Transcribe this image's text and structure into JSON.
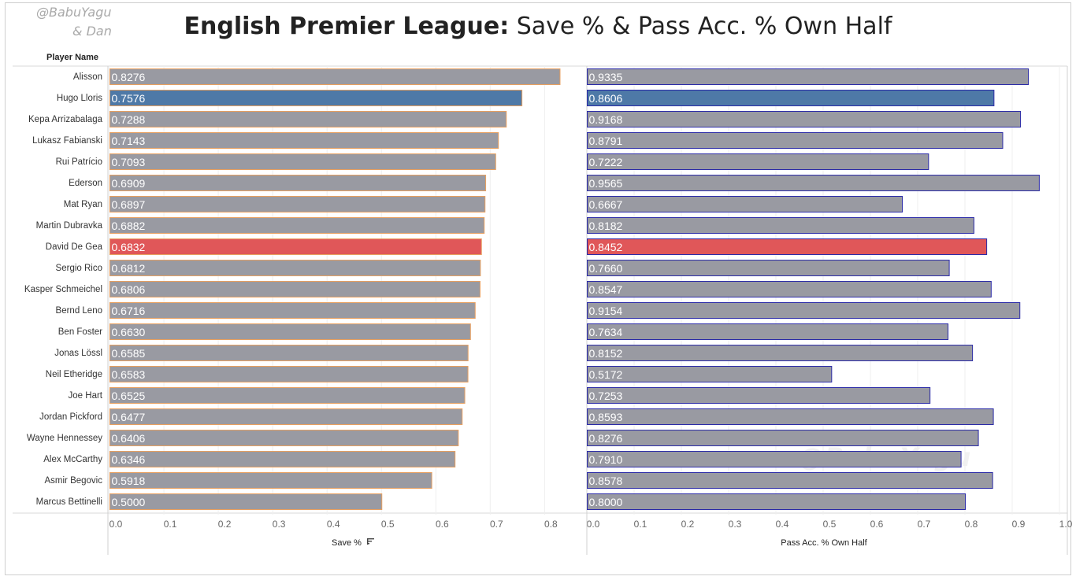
{
  "credit": {
    "line1": "@BabuYagu",
    "line2": "& Dan"
  },
  "title": {
    "bold": "English Premier League:",
    "rest": " Save % & Pass Acc. % Own Half"
  },
  "row_header": "Player Name",
  "watermark": "@BabuYagu",
  "sort_icon": "sort-descending-icon",
  "colors": {
    "default": "#999aa2",
    "spurs": "#4e79a7",
    "united": "#e05759",
    "save_border": "#e8a060",
    "pass_border": "#2b2ba8"
  },
  "chart_data": {
    "type": "bar",
    "orientation": "horizontal",
    "categories": [
      "Alisson",
      "Hugo Lloris",
      "Kepa Arrizabalaga",
      "Lukasz Fabianski",
      "Rui Patrício",
      "Ederson",
      "Mat Ryan",
      "Martin Dubravka",
      "David De Gea",
      "Sergio Rico",
      "Kasper Schmeichel",
      "Bernd Leno",
      "Ben Foster",
      "Jonas Lössl",
      "Neil Etheridge",
      "Joe Hart",
      "Jordan Pickford",
      "Wayne Hennessey",
      "Alex McCarthy",
      "Asmir Begovic",
      "Marcus Bettinelli"
    ],
    "highlight": {
      "Hugo Lloris": "spurs",
      "David De Gea": "united"
    },
    "panels": [
      {
        "xlabel": "Save %",
        "xlim": [
          0,
          0.85
        ],
        "ticks": [
          "0.0",
          "0.1",
          "0.2",
          "0.3",
          "0.4",
          "0.5",
          "0.6",
          "0.7",
          "0.8"
        ],
        "values": [
          0.8276,
          0.7576,
          0.7288,
          0.7143,
          0.7093,
          0.6909,
          0.6897,
          0.6882,
          0.6832,
          0.6812,
          0.6806,
          0.6716,
          0.663,
          0.6585,
          0.6583,
          0.6525,
          0.6477,
          0.6406,
          0.6346,
          0.5918,
          0.5
        ],
        "labels": [
          "0.8276",
          "0.7576",
          "0.7288",
          "0.7143",
          "0.7093",
          "0.6909",
          "0.6897",
          "0.6882",
          "0.6832",
          "0.6812",
          "0.6806",
          "0.6716",
          "0.6630",
          "0.6585",
          "0.6583",
          "0.6525",
          "0.6477",
          "0.6406",
          "0.6346",
          "0.5918",
          "0.5000"
        ]
      },
      {
        "xlabel": "Pass Acc. % Own Half",
        "xlim": [
          0,
          1.0
        ],
        "ticks": [
          "0.0",
          "0.1",
          "0.2",
          "0.3",
          "0.4",
          "0.5",
          "0.6",
          "0.7",
          "0.8",
          "0.9",
          "1.0"
        ],
        "values": [
          0.9335,
          0.8606,
          0.9168,
          0.8791,
          0.7222,
          0.9565,
          0.6667,
          0.8182,
          0.8452,
          0.766,
          0.8547,
          0.9154,
          0.7634,
          0.8152,
          0.5172,
          0.7253,
          0.8593,
          0.8276,
          0.791,
          0.8578,
          0.8
        ],
        "labels": [
          "0.9335",
          "0.8606",
          "0.9168",
          "0.8791",
          "0.7222",
          "0.9565",
          "0.6667",
          "0.8182",
          "0.8452",
          "0.7660",
          "0.8547",
          "0.9154",
          "0.7634",
          "0.8152",
          "0.5172",
          "0.7253",
          "0.8593",
          "0.8276",
          "0.7910",
          "0.8578",
          "0.8000"
        ]
      }
    ]
  }
}
